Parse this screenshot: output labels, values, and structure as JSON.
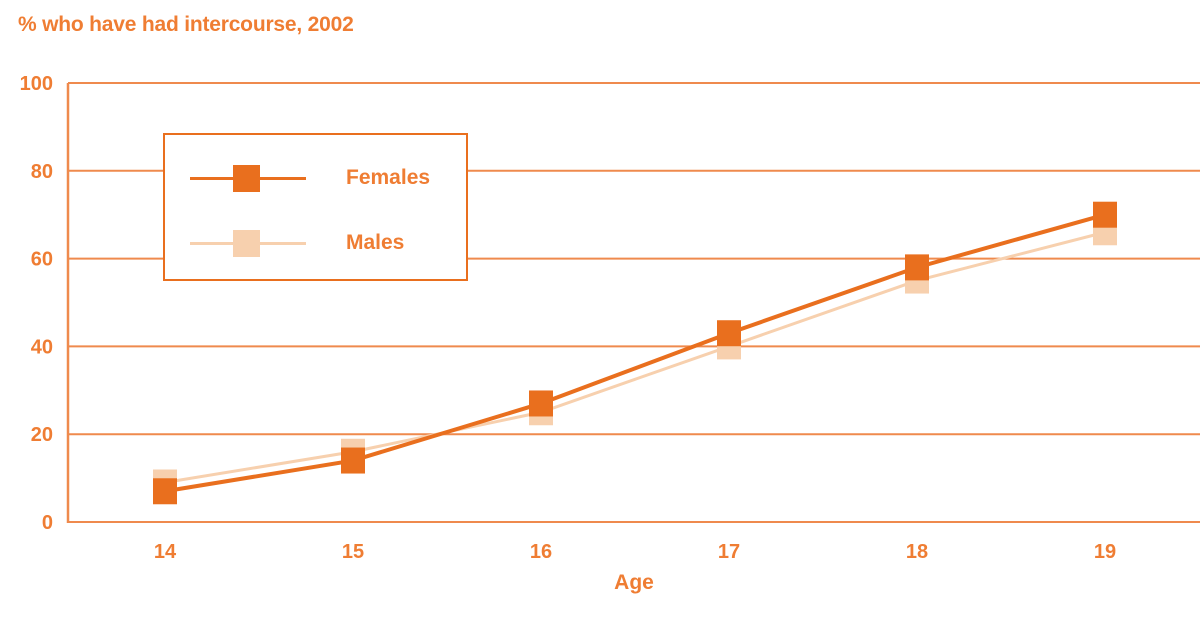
{
  "colors": {
    "accent": "#e96f1e",
    "text": "#ef7d33",
    "grid": "#ef8a4d",
    "background": "#ffffff"
  },
  "chart_data": {
    "type": "line",
    "title": "% who have had intercourse, 2002",
    "xlabel": "Age",
    "ylabel": "",
    "x": [
      14,
      15,
      16,
      17,
      18,
      19
    ],
    "series": [
      {
        "name": "Females",
        "values": [
          7,
          14,
          27,
          43,
          58,
          70
        ],
        "color": "#e96f1e"
      },
      {
        "name": "Males",
        "values": [
          9,
          16,
          25,
          40,
          55,
          66
        ],
        "color": "#f7d0ae"
      }
    ],
    "ylim": [
      0,
      100
    ],
    "yticks": [
      0,
      20,
      40,
      60,
      80,
      100
    ],
    "grid": true,
    "marker": "square",
    "legend_position": "top-left"
  }
}
